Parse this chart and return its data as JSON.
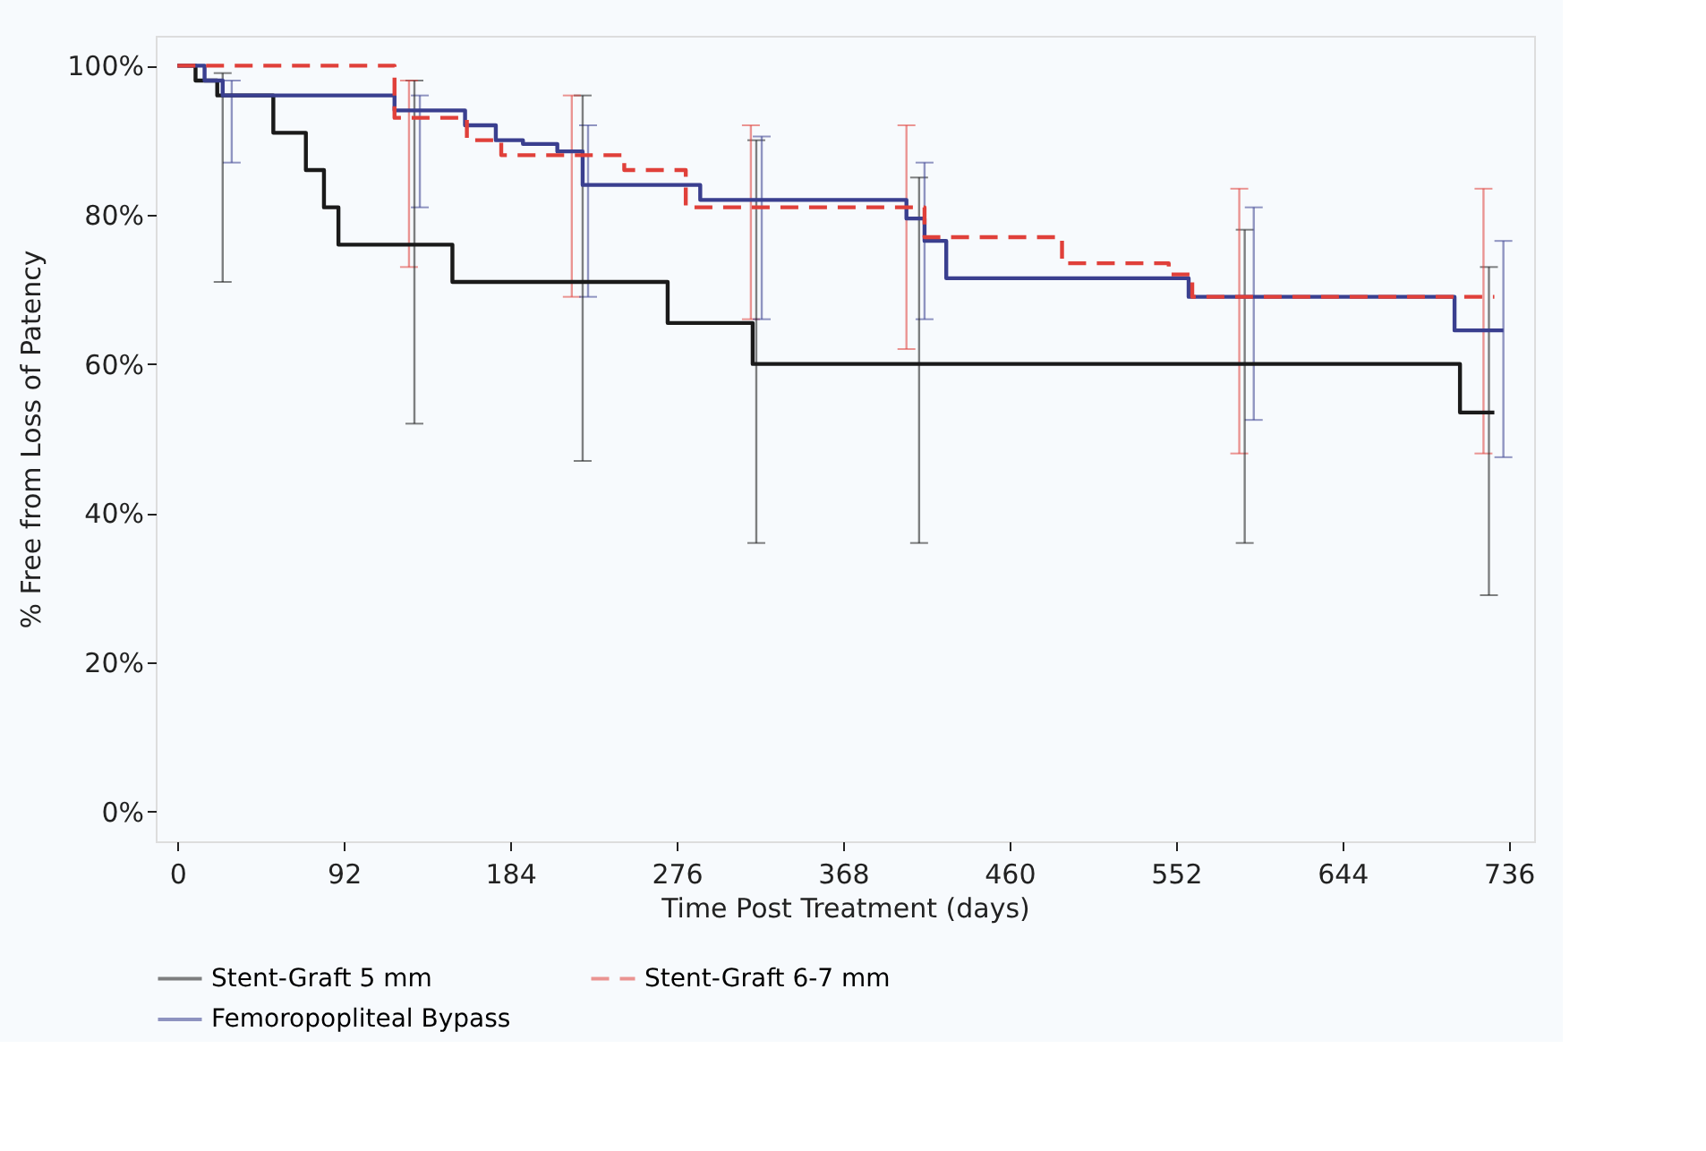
{
  "chart_data": {
    "type": "step",
    "xlabel": "Time Post Treatment (days)",
    "ylabel": "% Free from Loss of Patency",
    "xlim": [
      -12,
      750
    ],
    "xticks": [
      0,
      92,
      184,
      276,
      368,
      460,
      552,
      644,
      736
    ],
    "ylim": [
      -4,
      104
    ],
    "yticks": [
      {
        "value": 0,
        "label": "0%"
      },
      {
        "value": 20,
        "label": "20%"
      },
      {
        "value": 40,
        "label": "40%"
      },
      {
        "value": 60,
        "label": "60%"
      },
      {
        "value": 80,
        "label": "80%"
      },
      {
        "value": 100,
        "label": "100%"
      }
    ],
    "grid": false,
    "legend": "bottom",
    "marker": "none",
    "series": [
      {
        "name": "Stent-Graft 5 mm",
        "color": "#1a1a1a",
        "line_style": "solid",
        "x": [
          0,
          10,
          22,
          25,
          53,
          71,
          81,
          89,
          131,
          152,
          224,
          271,
          318,
          320,
          410,
          590,
          709,
          725,
          728
        ],
        "values": [
          100,
          98,
          96,
          96,
          91,
          86,
          81,
          76,
          76,
          71,
          71,
          65.5,
          60,
          60,
          60,
          60,
          53.5,
          53.5,
          53.5
        ],
        "errors": [
          null,
          null,
          null,
          [
            71,
            99
          ],
          null,
          null,
          null,
          null,
          [
            52,
            98
          ],
          null,
          [
            47,
            96
          ],
          null,
          null,
          [
            36,
            90
          ],
          [
            36,
            85
          ],
          [
            36,
            78
          ],
          null,
          [
            29,
            73
          ],
          null
        ]
      },
      {
        "name": "Stent-Graft 6-7 mm",
        "color": "#e0403a",
        "line_style": "dashed",
        "x": [
          0,
          120,
          128,
          160,
          179,
          218,
          247,
          281,
          317,
          403,
          413,
          489,
          548,
          561,
          587,
          722,
          728
        ],
        "values": [
          100,
          93,
          93,
          90,
          88,
          88,
          86,
          81,
          81,
          81,
          77,
          73.5,
          72,
          69,
          69,
          69,
          69
        ],
        "errors": [
          null,
          null,
          [
            73,
            98
          ],
          null,
          null,
          [
            69,
            96
          ],
          null,
          null,
          [
            66,
            92
          ],
          [
            62,
            92
          ],
          null,
          null,
          null,
          null,
          [
            48,
            83.5
          ],
          [
            48,
            83.5
          ],
          null
        ]
      },
      {
        "name": "Femoropopliteal Bypass",
        "color": "#3a3f8f",
        "line_style": "solid",
        "x": [
          0,
          15,
          25,
          30,
          120,
          134,
          159,
          176,
          191,
          210,
          224,
          227,
          289,
          323,
          403,
          413,
          425,
          559,
          595,
          706,
          733
        ],
        "values": [
          100,
          98,
          96,
          96,
          94,
          94,
          92,
          90,
          89.5,
          88.5,
          84,
          84,
          82,
          82,
          79.5,
          76.5,
          71.5,
          69,
          69,
          64.5,
          64.5
        ],
        "errors": [
          null,
          null,
          null,
          [
            87,
            98
          ],
          null,
          [
            81,
            96
          ],
          null,
          null,
          null,
          null,
          null,
          [
            69,
            92
          ],
          null,
          [
            66,
            90.5
          ],
          null,
          [
            66,
            87
          ],
          null,
          null,
          [
            52.5,
            81
          ],
          null,
          [
            47.5,
            76.5
          ]
        ]
      }
    ]
  }
}
